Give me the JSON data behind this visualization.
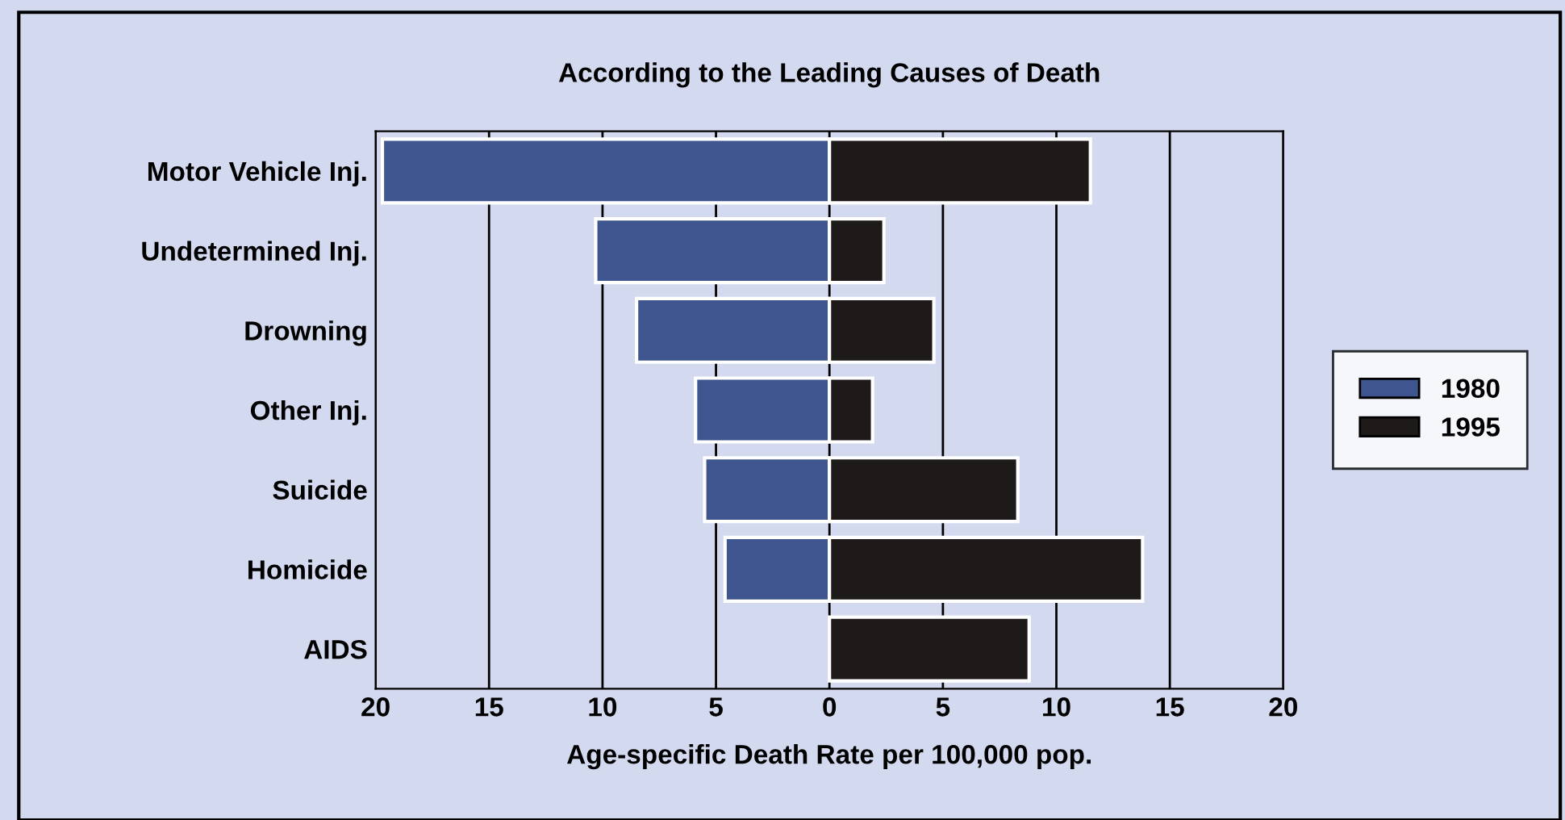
{
  "chart_data": {
    "type": "bar",
    "orientation": "horizontal",
    "title": "According to the Leading Causes of Death",
    "xlabel": "Age-specific Death Rate per 100,000 pop.",
    "categories": [
      "Motor Vehicle Inj.",
      "Undetermined Inj.",
      "Drowning",
      "Other Inj.",
      "Suicide",
      "Homicide",
      "AIDS"
    ],
    "series": [
      {
        "name": "1980",
        "color": "#3f5590",
        "values": [
          -19.7,
          -10.3,
          -8.5,
          -5.9,
          -5.5,
          -4.6,
          null
        ]
      },
      {
        "name": "1995",
        "color": "#1e1a1a",
        "values": [
          11.5,
          2.4,
          4.6,
          1.9,
          8.3,
          13.8,
          8.8
        ]
      }
    ],
    "xlim": [
      -20,
      20
    ],
    "xticks": [
      {
        "value": -20,
        "label": "20"
      },
      {
        "value": -15,
        "label": "15"
      },
      {
        "value": -10,
        "label": "10"
      },
      {
        "value": -5,
        "label": "5"
      },
      0,
      5,
      10,
      15,
      20
    ],
    "grid": "x",
    "stacked": true,
    "legend": "right"
  }
}
